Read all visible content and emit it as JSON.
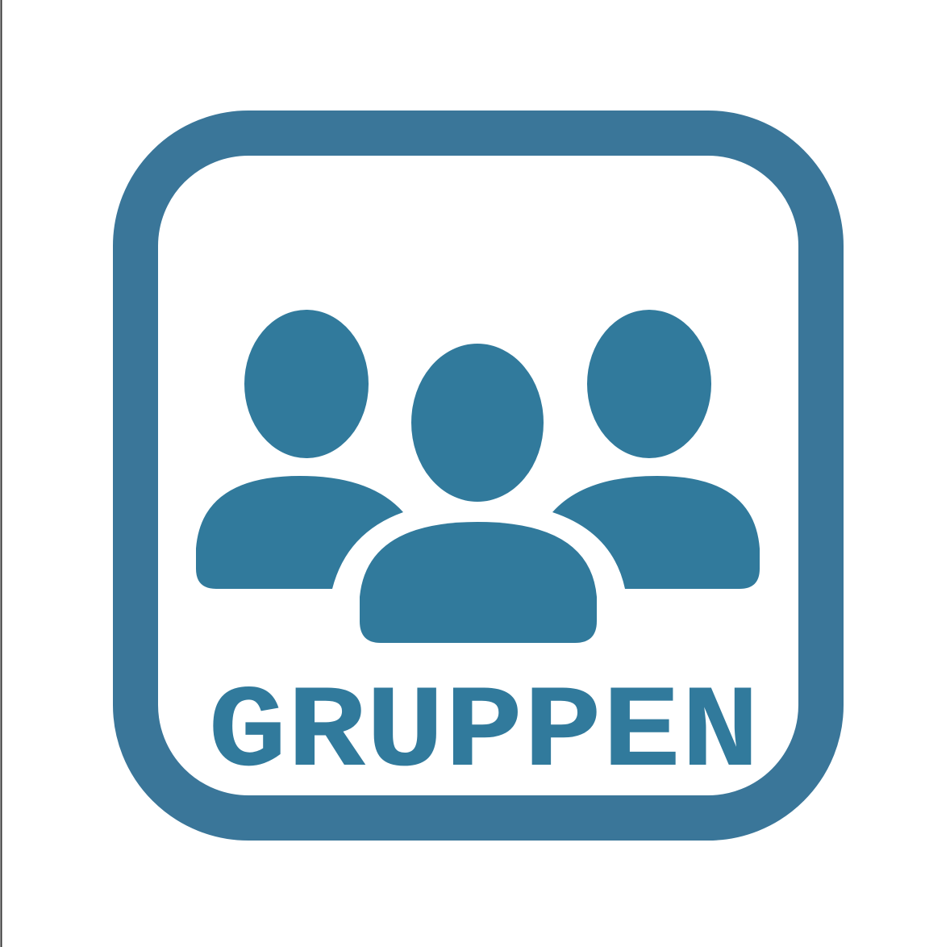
{
  "label": "GRUPPEN"
}
